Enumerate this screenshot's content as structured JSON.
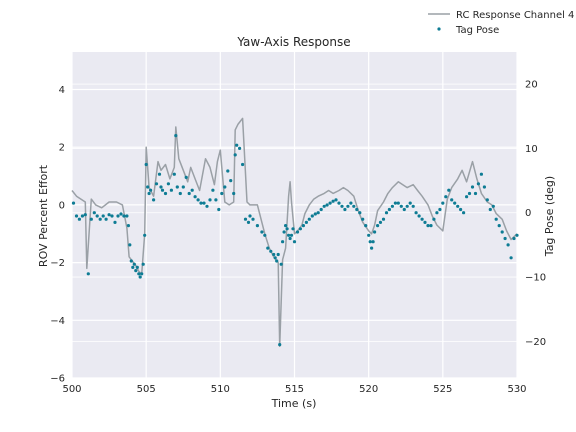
{
  "chart_data": {
    "type": "line",
    "title": "Yaw-Axis Response",
    "xlabel": "Time (s)",
    "ylabel": "ROV Percent Effort",
    "ylabel_right": "Tag Pose (deg)",
    "xlim": [
      500,
      530
    ],
    "ylim": [
      -6,
      5.3
    ],
    "ylim_right": [
      -25.7,
      25
    ],
    "x_ticks": [
      500,
      505,
      510,
      515,
      520,
      525,
      530
    ],
    "y_ticks": [
      -6,
      -4,
      -2,
      0,
      2,
      4
    ],
    "y_right_ticks": [
      -20,
      -10,
      0,
      10,
      20
    ],
    "grid": true,
    "legend_position": "above-top-right",
    "colors": {
      "background": "#eaeaf2",
      "grid": "#ffffff",
      "line": "#9aa0a6",
      "points": "#0e7c94"
    },
    "series": [
      {
        "name": "RC Response Channel 4",
        "axis": "left",
        "style": "line",
        "x": [
          500.0,
          500.3,
          500.6,
          500.9,
          501.0,
          501.3,
          501.6,
          502.0,
          502.5,
          503.0,
          503.4,
          503.7,
          503.85,
          504.0,
          504.3,
          504.5,
          504.7,
          504.9,
          505.0,
          505.2,
          505.5,
          505.8,
          506.0,
          506.3,
          506.6,
          506.9,
          507.0,
          507.2,
          507.5,
          507.8,
          508.0,
          508.3,
          508.6,
          509.0,
          509.3,
          509.6,
          509.8,
          510.0,
          510.3,
          510.6,
          510.9,
          511.0,
          511.2,
          511.5,
          511.8,
          512.0,
          512.5,
          513.0,
          513.3,
          513.6,
          513.9,
          514.0,
          514.2,
          514.4,
          514.6,
          514.7,
          514.8,
          515.0,
          515.2,
          515.5,
          515.7,
          516.0,
          516.3,
          516.6,
          517.0,
          517.3,
          517.6,
          518.0,
          518.3,
          518.6,
          519.0,
          519.3,
          519.6,
          520.0,
          520.2,
          520.4,
          520.6,
          521.0,
          521.3,
          521.6,
          522.0,
          522.3,
          522.6,
          523.0,
          523.3,
          523.6,
          524.0,
          524.3,
          524.6,
          525.0,
          525.3,
          525.6,
          526.0,
          526.3,
          526.6,
          527.0,
          527.3,
          527.6,
          528.0,
          528.3,
          528.6,
          529.0,
          529.3,
          529.6,
          530.0
        ],
        "y": [
          0.5,
          0.3,
          0.2,
          0.1,
          -2.2,
          0.2,
          0.0,
          -0.1,
          0.1,
          0.1,
          0.0,
          -0.8,
          -1.8,
          -1.9,
          -2.1,
          -2.3,
          -2.4,
          -1.0,
          2.0,
          0.6,
          0.3,
          1.5,
          1.2,
          1.4,
          0.9,
          1.3,
          2.7,
          1.6,
          1.2,
          0.8,
          1.3,
          0.9,
          0.5,
          1.6,
          1.3,
          0.7,
          1.5,
          1.9,
          0.1,
          0.0,
          0.1,
          2.6,
          2.8,
          3.0,
          0.1,
          0.0,
          0.0,
          -1.0,
          -1.5,
          -1.8,
          -2.0,
          -4.9,
          -1.9,
          -1.5,
          0.3,
          0.8,
          0.1,
          -1.0,
          -0.9,
          -0.7,
          -0.3,
          0.0,
          0.2,
          0.3,
          0.4,
          0.5,
          0.4,
          0.5,
          0.6,
          0.5,
          0.3,
          -0.2,
          -0.6,
          -0.9,
          -1.0,
          -0.7,
          -0.2,
          0.1,
          0.4,
          0.6,
          0.8,
          0.7,
          0.6,
          0.7,
          0.5,
          0.3,
          0.0,
          -0.4,
          -0.7,
          -0.9,
          0.2,
          0.6,
          0.9,
          1.2,
          0.8,
          1.5,
          0.9,
          0.4,
          0.1,
          0.0,
          -0.3,
          -0.5,
          -0.9,
          -1.2,
          -1.0
        ]
      },
      {
        "name": "Tag Pose",
        "axis": "right",
        "style": "scatter",
        "x": [
          500.1,
          500.3,
          500.5,
          500.7,
          500.9,
          501.1,
          501.3,
          501.5,
          501.7,
          501.9,
          502.1,
          502.3,
          502.5,
          502.7,
          502.9,
          503.1,
          503.3,
          503.5,
          503.7,
          503.8,
          503.9,
          504.0,
          504.1,
          504.2,
          504.3,
          504.4,
          504.5,
          504.6,
          504.7,
          504.8,
          504.9,
          505.0,
          505.1,
          505.2,
          505.3,
          505.5,
          505.7,
          505.9,
          506.0,
          506.1,
          506.3,
          506.5,
          506.7,
          506.9,
          507.0,
          507.1,
          507.3,
          507.5,
          507.7,
          507.9,
          508.1,
          508.3,
          508.5,
          508.7,
          508.9,
          509.1,
          509.3,
          509.5,
          509.7,
          509.9,
          510.1,
          510.3,
          510.5,
          510.7,
          510.9,
          511.0,
          511.1,
          511.3,
          511.5,
          511.7,
          511.9,
          512.0,
          512.2,
          512.5,
          512.8,
          513.0,
          513.2,
          513.4,
          513.6,
          513.7,
          513.8,
          513.9,
          514.0,
          514.1,
          514.2,
          514.3,
          514.4,
          514.5,
          514.6,
          514.7,
          514.8,
          514.9,
          515.0,
          515.2,
          515.4,
          515.6,
          515.8,
          516.0,
          516.2,
          516.4,
          516.6,
          516.8,
          517.0,
          517.2,
          517.4,
          517.6,
          517.8,
          518.0,
          518.2,
          518.4,
          518.6,
          518.8,
          519.0,
          519.2,
          519.4,
          519.6,
          519.8,
          520.0,
          520.1,
          520.2,
          520.3,
          520.4,
          520.6,
          520.8,
          521.0,
          521.2,
          521.4,
          521.6,
          521.8,
          522.0,
          522.2,
          522.4,
          522.6,
          522.8,
          523.0,
          523.2,
          523.4,
          523.6,
          523.8,
          524.0,
          524.2,
          524.4,
          524.6,
          524.8,
          525.0,
          525.2,
          525.4,
          525.6,
          525.8,
          526.0,
          526.2,
          526.4,
          526.6,
          526.8,
          527.0,
          527.2,
          527.4,
          527.6,
          527.8,
          528.0,
          528.2,
          528.4,
          528.6,
          528.8,
          529.0,
          529.2,
          529.4,
          529.6,
          529.8,
          530.0
        ],
        "y": [
          1.5,
          -0.5,
          -1.0,
          -0.5,
          -0.3,
          -9.5,
          -1.0,
          0.0,
          -0.5,
          -1.0,
          -0.5,
          -1.0,
          -0.3,
          -0.5,
          -1.5,
          -0.5,
          -0.2,
          -0.5,
          -0.5,
          -2.0,
          -5.0,
          -7.5,
          -8.5,
          -8.0,
          -9.0,
          -8.5,
          -9.5,
          -10.0,
          -9.5,
          -8.0,
          -3.5,
          7.5,
          4.0,
          3.0,
          3.5,
          2.0,
          4.5,
          6.0,
          4.0,
          3.5,
          3.0,
          4.5,
          3.5,
          6.0,
          12.0,
          4.0,
          3.0,
          4.0,
          5.5,
          3.0,
          3.5,
          2.5,
          2.0,
          1.5,
          1.5,
          1.0,
          2.0,
          3.5,
          2.0,
          0.5,
          3.0,
          4.0,
          6.5,
          5.0,
          3.0,
          9.0,
          10.5,
          10.0,
          7.5,
          -1.0,
          -1.5,
          -0.5,
          -1.0,
          -2.0,
          -3.0,
          -3.5,
          -5.5,
          -6.0,
          -6.5,
          -7.0,
          -7.5,
          -6.5,
          -20.5,
          -8.0,
          -4.5,
          -3.0,
          -2.0,
          -2.5,
          -3.5,
          -4.0,
          -3.5,
          -2.5,
          -4.5,
          -3.0,
          -2.5,
          -2.0,
          -1.5,
          -1.0,
          -0.5,
          -0.2,
          0.0,
          0.5,
          1.0,
          1.2,
          1.5,
          1.8,
          2.0,
          1.5,
          1.0,
          0.5,
          1.0,
          1.5,
          1.0,
          0.5,
          0.0,
          -1.0,
          -2.0,
          -3.5,
          -4.5,
          -5.5,
          -4.5,
          -3.0,
          -2.0,
          -1.5,
          -1.0,
          0.0,
          0.5,
          1.0,
          1.5,
          1.5,
          1.0,
          0.5,
          1.0,
          1.5,
          1.0,
          0.0,
          -0.5,
          -1.0,
          -1.5,
          -2.0,
          -2.0,
          -1.0,
          0.0,
          0.5,
          1.5,
          2.5,
          3.5,
          2.0,
          1.5,
          1.0,
          0.5,
          0.0,
          2.5,
          3.0,
          4.0,
          3.0,
          4.5,
          6.0,
          4.0,
          2.0,
          0.5,
          1.0,
          -1.0,
          -2.0,
          -3.0,
          -4.0,
          -5.0,
          -7.0,
          -4.0,
          -3.5
        ]
      }
    ]
  }
}
